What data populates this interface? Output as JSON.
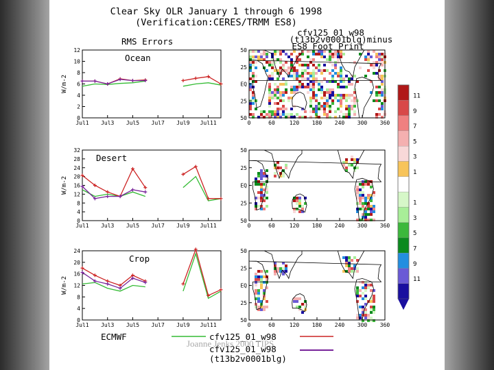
{
  "title_line1": "Clear Sky OLR January 1 through 6 1998",
  "title_line2": "(Verification:CERES/TRMM ES8)",
  "map_title_line1": "cfv125_01_w98",
  "map_title_line2": "(t13b2v0001blg)minus",
  "map_title_line3": "ES8 Foot Print",
  "rms_label": "RMS Errors",
  "footer_text": "Joanne Jenks 2000 TIPS",
  "legend": {
    "ecmwf": "ECMWF",
    "cfv_w98": "cfv125_01_w98",
    "cfv_w98_2": "cfv125_01_w98",
    "t13": "(t13b2v0001blg)"
  },
  "colors": {
    "ecmwf": "#33bb33",
    "cfv_w98": "#cc2222",
    "t13": "#772299"
  },
  "colorbar": {
    "labels": [
      "11",
      "9",
      "7",
      "5",
      "3",
      "1",
      "1",
      "3",
      "5",
      "7",
      "9",
      "11"
    ],
    "colors": [
      "#b01818",
      "#d84848",
      "#f08080",
      "#f4b0b0",
      "#f8d8d8",
      "#f7c45a",
      "#ffffff",
      "#d6f7c8",
      "#a8ee98",
      "#3cb83c",
      "#0b8a1e",
      "#238ee0",
      "#6a5ad6",
      "#1a0f9f"
    ]
  },
  "map_axes": {
    "x_ticks": [
      "0",
      "60",
      "120",
      "180",
      "240",
      "300",
      "360"
    ],
    "y_ticks": [
      "50",
      "25",
      "EQ",
      "25",
      "50"
    ]
  },
  "chart_data": [
    {
      "type": "line",
      "panel": "Ocean",
      "title": "Ocean",
      "ylabel": "W/m-2",
      "x_ticks": [
        "Jul1",
        "Jul3",
        "Jul5",
        "Jul7",
        "Jul9",
        "Jul11"
      ],
      "y_ticks": [
        "0",
        "2",
        "4",
        "6",
        "8",
        "10",
        "12"
      ],
      "ylim": [
        0,
        12
      ],
      "x": [
        1,
        2,
        3,
        4,
        5,
        6,
        7,
        8,
        9,
        10,
        11,
        12
      ],
      "series": [
        {
          "name": "ECMWF",
          "values": [
            5.6,
            6.0,
            5.9,
            6.1,
            6.2,
            6.5,
            null,
            null,
            5.6,
            6.0,
            6.2,
            5.8
          ]
        },
        {
          "name": "cfv125_01_w98",
          "values": [
            6.5,
            6.5,
            6.0,
            6.9,
            6.6,
            6.7,
            null,
            null,
            6.6,
            7.0,
            7.3,
            6.0
          ]
        },
        {
          "name": "cfv125_01_w98 (t13b2v0001blg)",
          "values": [
            6.5,
            6.5,
            6.0,
            6.8,
            6.6,
            6.6,
            null,
            null,
            null,
            null,
            null,
            null
          ]
        }
      ]
    },
    {
      "type": "line",
      "panel": "Desert",
      "title": "Desert",
      "ylabel": "W/m-2",
      "x_ticks": [
        "Jul1",
        "Jul3",
        "Jul5",
        "Jul7",
        "Jul9",
        "Jul11"
      ],
      "y_ticks": [
        "0",
        "4",
        "8",
        "12",
        "16",
        "20",
        "24",
        "28",
        "32"
      ],
      "ylim": [
        0,
        32
      ],
      "x": [
        1,
        2,
        3,
        4,
        5,
        6,
        7,
        8,
        9,
        10,
        11,
        12
      ],
      "series": [
        {
          "name": "ECMWF",
          "values": [
            14,
            11,
            12,
            11,
            13,
            11,
            null,
            null,
            15,
            20,
            9,
            10
          ]
        },
        {
          "name": "cfv125_01_w98",
          "values": [
            20.5,
            16,
            13,
            11,
            23.5,
            15,
            null,
            null,
            21,
            24.5,
            10,
            10
          ]
        },
        {
          "name": "cfv125_01_w98 (t13b2v0001blg)",
          "values": [
            15.5,
            10,
            11,
            11,
            14,
            13,
            null,
            null,
            null,
            null,
            null,
            null
          ]
        }
      ]
    },
    {
      "type": "line",
      "panel": "Crop",
      "title": "Crop",
      "ylabel": "W/m-2",
      "x_ticks": [
        "Jul1",
        "Jul3",
        "Jul5",
        "Jul7",
        "Jul9",
        "Jul11"
      ],
      "y_ticks": [
        "0",
        "4",
        "8",
        "12",
        "16",
        "20",
        "24"
      ],
      "ylim": [
        0,
        24
      ],
      "x": [
        1,
        2,
        3,
        4,
        5,
        6,
        7,
        8,
        9,
        10,
        11,
        12
      ],
      "series": [
        {
          "name": "ECMWF",
          "values": [
            12.5,
            13,
            11,
            10,
            12,
            11.5,
            null,
            null,
            10,
            23,
            7.5,
            10
          ]
        },
        {
          "name": "cfv125_01_w98",
          "values": [
            18,
            15.5,
            13.5,
            12,
            15.5,
            13.5,
            null,
            null,
            12.5,
            24.5,
            8.5,
            10.5
          ]
        },
        {
          "name": "cfv125_01_w98 (t13b2v0001blg)",
          "values": [
            16.5,
            13.5,
            12.5,
            11,
            14.5,
            13,
            null,
            null,
            null,
            null,
            null,
            null
          ]
        }
      ]
    }
  ]
}
